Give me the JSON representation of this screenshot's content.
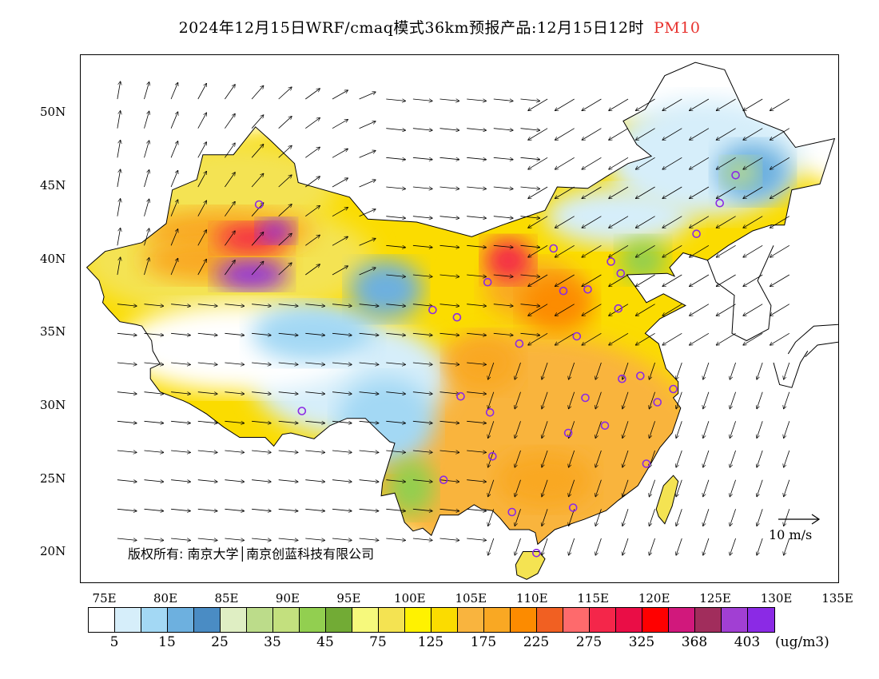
{
  "title": {
    "main": "2024年12月15日WRF/cmaq模式36km预报产品:12月15日12时",
    "variable": "PM10"
  },
  "axes": {
    "lat_labels": [
      "50N",
      "45N",
      "40N",
      "35N",
      "30N",
      "25N",
      "20N"
    ],
    "lat_values": [
      50,
      45,
      40,
      35,
      30,
      25,
      20
    ],
    "lon_labels": [
      "75E",
      "80E",
      "85E",
      "90E",
      "95E",
      "100E",
      "105E",
      "110E",
      "115E",
      "120E",
      "125E",
      "130E",
      "135E"
    ],
    "lon_values": [
      75,
      80,
      85,
      90,
      95,
      100,
      105,
      110,
      115,
      120,
      125,
      130,
      135
    ],
    "lon_range": [
      73,
      135
    ],
    "lat_range": [
      18,
      54
    ]
  },
  "copyright": "版权所有: 南京大学│南京创蓝科技有限公司",
  "wind_scale": {
    "label": "10 m/s"
  },
  "legend": {
    "colors": [
      "#ffffff",
      "#d6eefa",
      "#a3d8f4",
      "#6db0df",
      "#4a8cc4",
      "#dfeec3",
      "#bcdc8a",
      "#c3e07e",
      "#92cf50",
      "#72ab35",
      "#f6f97c",
      "#f4e352",
      "#fff200",
      "#fbdc00",
      "#f9b43e",
      "#f9a823",
      "#fc8b00",
      "#f16022",
      "#fe6a6c",
      "#f4264a",
      "#ea0d46",
      "#ff0000",
      "#d1187c",
      "#a12d5c",
      "#a13fd3",
      "#8b2ae5"
    ],
    "labels": [
      "5",
      "15",
      "25",
      "35",
      "45",
      "75",
      "125",
      "175",
      "225",
      "275",
      "325",
      "368",
      "403"
    ],
    "unit": "(ug/m3)"
  },
  "sites": [
    {
      "lon": 87.6,
      "lat": 43.8
    },
    {
      "lon": 91.1,
      "lat": 29.7
    },
    {
      "lon": 101.8,
      "lat": 36.6
    },
    {
      "lon": 103.8,
      "lat": 36.1
    },
    {
      "lon": 106.3,
      "lat": 38.5
    },
    {
      "lon": 111.7,
      "lat": 40.8
    },
    {
      "lon": 116.4,
      "lat": 39.9
    },
    {
      "lon": 117.2,
      "lat": 39.1
    },
    {
      "lon": 114.5,
      "lat": 38.0
    },
    {
      "lon": 112.5,
      "lat": 37.9
    },
    {
      "lon": 117.0,
      "lat": 36.7
    },
    {
      "lon": 113.6,
      "lat": 34.8
    },
    {
      "lon": 108.9,
      "lat": 34.3
    },
    {
      "lon": 104.1,
      "lat": 30.7
    },
    {
      "lon": 106.5,
      "lat": 29.6
    },
    {
      "lon": 106.7,
      "lat": 26.6
    },
    {
      "lon": 102.7,
      "lat": 25.0
    },
    {
      "lon": 108.3,
      "lat": 22.8
    },
    {
      "lon": 110.3,
      "lat": 20.0
    },
    {
      "lon": 113.3,
      "lat": 23.1
    },
    {
      "lon": 112.9,
      "lat": 28.2
    },
    {
      "lon": 115.9,
      "lat": 28.7
    },
    {
      "lon": 114.3,
      "lat": 30.6
    },
    {
      "lon": 117.3,
      "lat": 31.9
    },
    {
      "lon": 118.8,
      "lat": 32.1
    },
    {
      "lon": 120.2,
      "lat": 30.3
    },
    {
      "lon": 121.5,
      "lat": 31.2
    },
    {
      "lon": 119.3,
      "lat": 26.1
    },
    {
      "lon": 123.4,
      "lat": 41.8
    },
    {
      "lon": 125.3,
      "lat": 43.9
    },
    {
      "lon": 126.6,
      "lat": 45.8
    }
  ]
}
